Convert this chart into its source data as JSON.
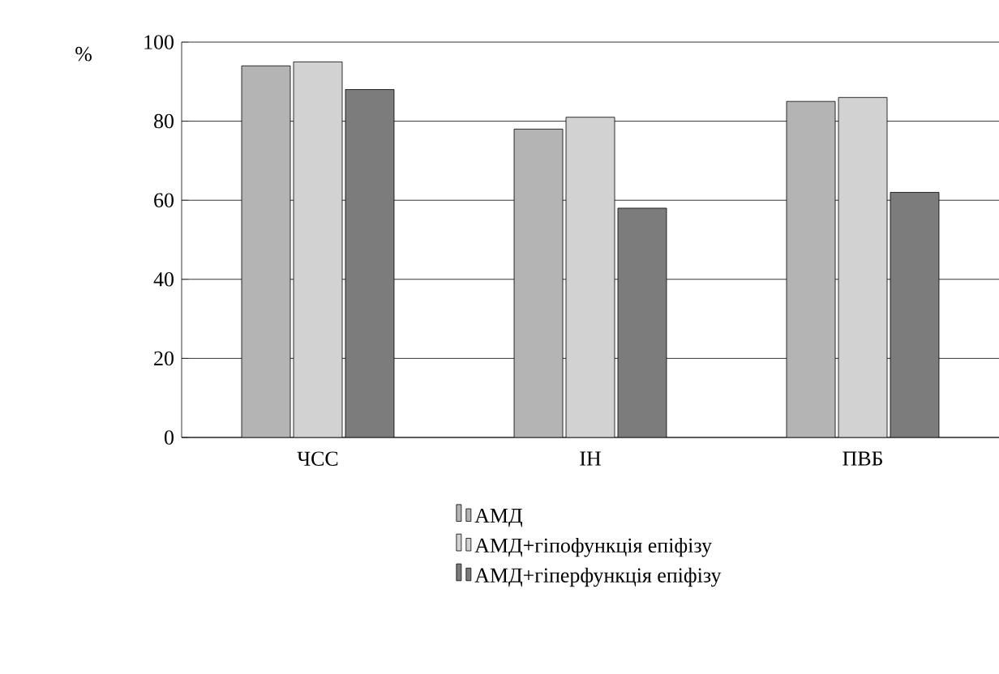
{
  "chart_data": {
    "type": "bar",
    "ylabel": "%",
    "categories": [
      "ЧСС",
      "ІН",
      "ПВБ"
    ],
    "series": [
      {
        "name": "АМД",
        "color": "#b4b4b4",
        "values": [
          94,
          78,
          85
        ]
      },
      {
        "name": "АМД+гіпофункція епіфізу",
        "color": "#d2d2d2",
        "values": [
          95,
          81,
          86
        ]
      },
      {
        "name": "АМД+гіперфункція епіфізу",
        "color": "#7c7c7c",
        "values": [
          88,
          58,
          62
        ]
      }
    ],
    "ylim": [
      0,
      100
    ],
    "yticks": [
      0,
      20,
      40,
      60,
      80,
      100
    ],
    "grid": "y",
    "legend": "bottom"
  }
}
